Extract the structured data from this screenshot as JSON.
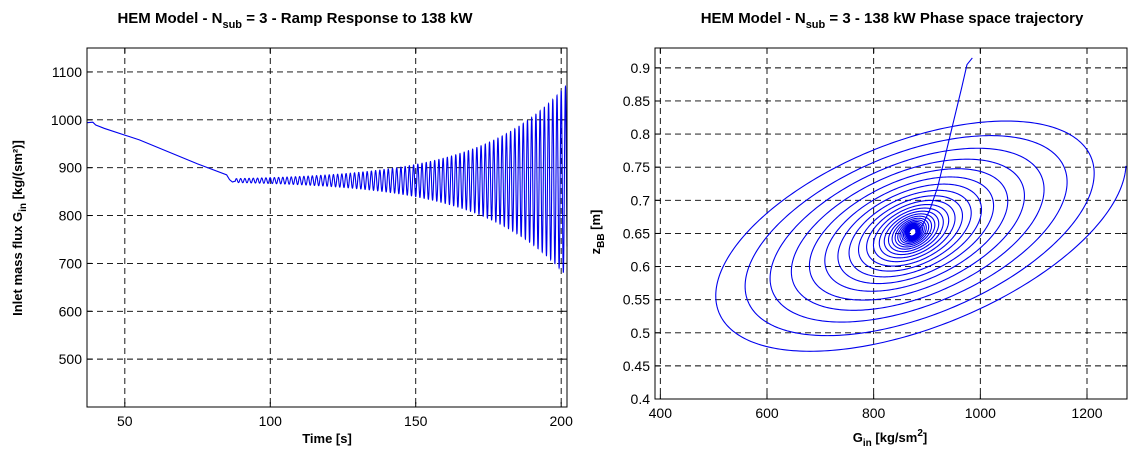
{
  "chart_data": [
    {
      "type": "line",
      "title": {
        "pre": "HEM Model - N",
        "sub": "sub",
        "post": " = 3 - Ramp Response to 138 kW"
      },
      "xlabel": {
        "pre": "Time [s]",
        "sub": "",
        "sup": "",
        "post": ""
      },
      "ylabel": {
        "pre": "Inlet mass flux G",
        "sub": "in",
        "sup": "",
        "post": " [kg/(sm²)]"
      },
      "xlim": [
        37,
        202
      ],
      "ylim": [
        400,
        1150
      ],
      "xticks": [
        50,
        100,
        150,
        200
      ],
      "yticks": [
        500,
        600,
        700,
        800,
        900,
        1000,
        1100
      ],
      "grid": true,
      "series": [
        {
          "color": "#0000ee",
          "segments": [
            {
              "x": [
                37,
                39,
                40,
                43,
                55,
                65,
                75,
                85
              ],
              "y": [
                994,
                995,
                989,
                982,
                958,
                933,
                908,
                885
              ]
            },
            {
              "x": [
                86,
                87,
                88
              ],
              "y": [
                875,
                870,
                872
              ]
            }
          ],
          "oscillation": {
            "x_start": 88,
            "x_end": 202,
            "center": 873,
            "period_s": 1.45,
            "amp_start": 4,
            "amp_end": 200,
            "growth": "exponential"
          }
        }
      ]
    },
    {
      "type": "line",
      "title": {
        "pre": "HEM Model - N",
        "sub": "sub",
        "post": " = 3 - 138 kW Phase space trajectory"
      },
      "xlabel": {
        "pre": "G",
        "sub": "in",
        "sup": "2",
        "post_before_sup": " [kg/sm",
        "post": "]"
      },
      "ylabel": {
        "pre": "z",
        "sub": "BB",
        "sup": "",
        "post": " [m]"
      },
      "xlim": [
        390,
        1275
      ],
      "ylim": [
        0.4,
        0.93
      ],
      "xticks": [
        400,
        600,
        800,
        1000,
        1200
      ],
      "yticks": [
        0.4,
        0.45,
        0.5,
        0.55,
        0.6,
        0.65,
        0.7,
        0.75,
        0.8,
        0.85,
        0.9
      ],
      "grid": true,
      "series": [
        {
          "color": "#0000ee",
          "transient": {
            "x": [
              985,
              975,
              965,
              950,
              935,
              920,
              905,
              890
            ],
            "y": [
              0.915,
              0.905,
              0.87,
              0.82,
              0.77,
              0.72,
              0.685,
              0.66
            ]
          },
          "spiral": {
            "center": [
              873,
              0.652
            ],
            "a_start": 6,
            "a_end": 400,
            "b_start": 0.005,
            "b_end": 0.16,
            "tilt_slope": 0.00025,
            "turns": 26
          }
        }
      ]
    }
  ]
}
